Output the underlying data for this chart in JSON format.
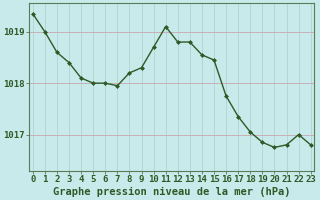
{
  "x": [
    0,
    1,
    2,
    3,
    4,
    5,
    6,
    7,
    8,
    9,
    10,
    11,
    12,
    13,
    14,
    15,
    16,
    17,
    18,
    19,
    20,
    21,
    22,
    23
  ],
  "y": [
    1019.35,
    1019.0,
    1018.6,
    1018.4,
    1018.1,
    1018.0,
    1018.0,
    1017.95,
    1018.2,
    1018.3,
    1018.7,
    1019.1,
    1018.8,
    1018.8,
    1018.55,
    1018.45,
    1017.75,
    1017.35,
    1017.05,
    1016.85,
    1016.75,
    1016.8,
    1017.0,
    1016.8
  ],
  "line_color": "#2d5a27",
  "marker": "D",
  "marker_size": 2.0,
  "bg_color": "#c8eaea",
  "vgrid_color": "#b0cccc",
  "hgrid_color": "#c8a8b0",
  "xlabel": "Graphe pression niveau de la mer (hPa)",
  "xlabel_color": "#2d5a27",
  "xlabel_fontsize": 7.5,
  "tick_color": "#2d5a27",
  "tick_fontsize": 6.5,
  "ytick_labels": [
    "1017",
    "1018",
    "1019"
  ],
  "ytick_values": [
    1017,
    1018,
    1019
  ],
  "ylim": [
    1016.3,
    1019.55
  ],
  "xlim": [
    -0.3,
    23.3
  ],
  "spine_color": "#5a7a5a",
  "linewidth": 1.0
}
